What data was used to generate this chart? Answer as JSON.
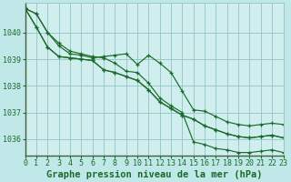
{
  "title": "Graphe pression niveau de la mer (hPa)",
  "background_color": "#c0e8e8",
  "plot_bg_color": "#d0eeee",
  "grid_color": "#98c8c8",
  "line_color": "#1a6b2a",
  "xlim": [
    0,
    23
  ],
  "ylim": [
    1035.4,
    1041.1
  ],
  "yticks": [
    1036,
    1037,
    1038,
    1039,
    1040
  ],
  "xticks": [
    0,
    1,
    2,
    3,
    4,
    5,
    6,
    7,
    8,
    9,
    10,
    11,
    12,
    13,
    14,
    15,
    16,
    17,
    18,
    19,
    20,
    21,
    22,
    23
  ],
  "series": [
    [
      1040.9,
      1040.7,
      1040.0,
      1039.5,
      1039.2,
      1039.15,
      1039.05,
      1039.1,
      1039.15,
      1039.2,
      1038.8,
      1039.15,
      1038.85,
      1038.5,
      1037.8,
      1037.1,
      1037.05,
      1036.85,
      1036.65,
      1036.55,
      1036.5,
      1036.55,
      1036.6,
      1036.55
    ],
    [
      1040.9,
      1040.2,
      1039.45,
      1039.1,
      1039.05,
      1039.0,
      1038.95,
      1038.6,
      1038.5,
      1038.35,
      1038.2,
      1037.85,
      1037.4,
      1037.15,
      1036.9,
      1036.75,
      1036.5,
      1036.35,
      1036.2,
      1036.1,
      1036.05,
      1036.1,
      1036.15,
      1036.05
    ],
    [
      1040.9,
      1040.2,
      1039.45,
      1039.1,
      1039.05,
      1039.0,
      1038.95,
      1038.6,
      1038.5,
      1038.35,
      1038.2,
      1037.85,
      1037.4,
      1037.15,
      1036.9,
      1036.75,
      1036.5,
      1036.35,
      1036.2,
      1036.1,
      1036.05,
      1036.1,
      1036.15,
      1036.05
    ],
    [
      1040.9,
      1040.7,
      1040.0,
      1039.6,
      1039.3,
      1039.2,
      1039.1,
      1039.05,
      1038.85,
      1038.55,
      1038.5,
      1038.1,
      1037.55,
      1037.25,
      1037.0,
      1035.9,
      1035.8,
      1035.65,
      1035.6,
      1035.5,
      1035.5,
      1035.55,
      1035.6,
      1035.5
    ]
  ],
  "font_family": "monospace",
  "title_fontsize": 7.5,
  "tick_fontsize": 6
}
